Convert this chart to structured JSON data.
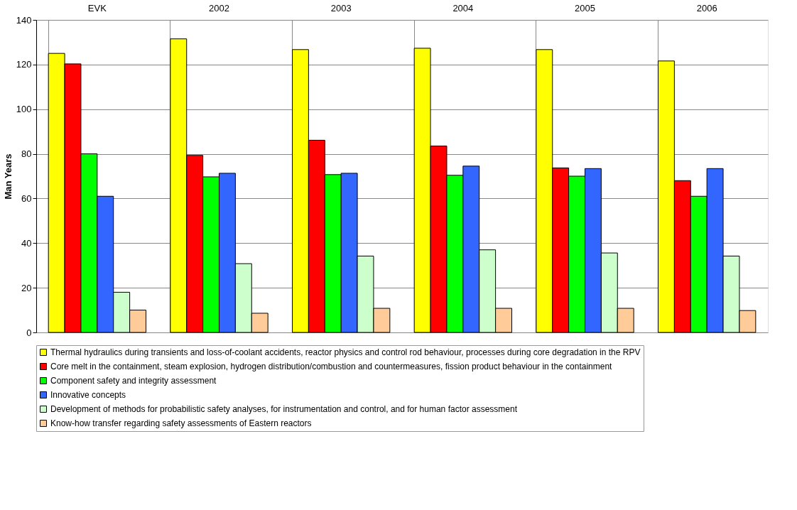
{
  "chart_data": {
    "type": "bar",
    "ylabel": "Man Years",
    "categories": [
      "EVK",
      "2002",
      "2003",
      "2004",
      "2005",
      "2006"
    ],
    "series": [
      {
        "name": "Thermal hydraulics during transients and loss-of-coolant accidents, reactor physics and control rod behaviour, processes during core degradation in the RPV",
        "color": "#ffff00",
        "values": [
          125,
          131.5,
          126.7,
          127.3,
          126.7,
          121.6
        ]
      },
      {
        "name": "Core melt in the containment, steam explosion, hydrogen distribution/combustion and countermeasures, fission product behaviour in the containment",
        "color": "#ff0000",
        "values": [
          120.3,
          79.3,
          86.1,
          83.5,
          73.7,
          68
        ]
      },
      {
        "name": "Component safety and integrity assessment",
        "color": "#00ff00",
        "values": [
          80,
          69.7,
          70.7,
          70.4,
          70,
          61
        ]
      },
      {
        "name": "Innovative concepts",
        "color": "#3366ff",
        "values": [
          61,
          71.3,
          71.3,
          74.5,
          73.4,
          73.4
        ]
      },
      {
        "name": "Development of methods for probabilistic safety analyses, for instrumentation and control, and for human factor assessment",
        "color": "#ccffcc",
        "values": [
          18,
          30.8,
          34.2,
          37,
          35.6,
          34.2
        ]
      },
      {
        "name": "Know-how transfer regarding safety assessments of Eastern reactors",
        "color": "#ffcc99",
        "values": [
          10,
          8.6,
          10.8,
          10.8,
          10.8,
          9.8
        ]
      }
    ],
    "ylim": [
      0,
      140
    ],
    "yticks": [
      0,
      20,
      40,
      60,
      80,
      100,
      120,
      140
    ],
    "grid": true,
    "legend": "bottom"
  }
}
